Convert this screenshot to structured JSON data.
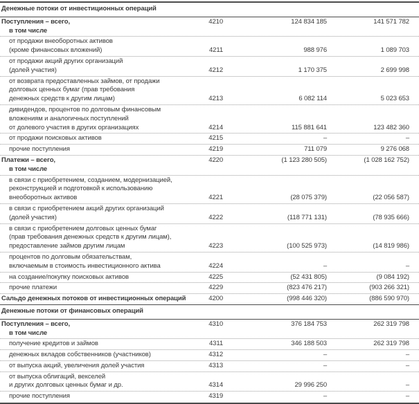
{
  "table": {
    "dash": "–",
    "rows": [
      {
        "type": "section",
        "label": "Денежные потоки от инвестиционных операций"
      },
      {
        "type": "total",
        "code": "4210",
        "lines": [
          "Поступления – всего,"
        ],
        "sub": "в том числе",
        "v1": "124 834 185",
        "v2": "141 571 782"
      },
      {
        "type": "item",
        "code": "4211",
        "lines": [
          "от продажи внеоборотных активов",
          "(кроме финансовых вложений)"
        ],
        "v1": "988 976",
        "v2": "1 089 703"
      },
      {
        "type": "item",
        "code": "4212",
        "lines": [
          "от продажи акций других организаций",
          "(долей участия)"
        ],
        "v1": "1 170 375",
        "v2": "2 699 998"
      },
      {
        "type": "item",
        "code": "4213",
        "lines": [
          "от возврата предоставленных займов, от продажи",
          "долговых ценных бумаг (прав требования",
          "денежных средств к другим лицам)"
        ],
        "v1": "6 082 114",
        "v2": "5 023 653"
      },
      {
        "type": "item",
        "code": "4214",
        "lines": [
          "дивидендов, процентов по долговым финансовым",
          "вложениям и аналогичных поступлений",
          "от долевого участия в других организациях"
        ],
        "v1": "115 881 641",
        "v2": "123 482 360"
      },
      {
        "type": "item",
        "code": "4215",
        "lines": [
          "от продажи поисковых активов"
        ],
        "v1": "–",
        "v2": "–"
      },
      {
        "type": "item",
        "code": "4219",
        "lines": [
          "прочие поступления"
        ],
        "v1": "711 079",
        "v2": "9 276 068"
      },
      {
        "type": "total",
        "code": "4220",
        "lines": [
          "Платежи – всего,"
        ],
        "sub": "в том числе",
        "v1": "(1 123 280 505)",
        "v2": "(1 028 162 752)"
      },
      {
        "type": "item",
        "code": "4221",
        "lines": [
          "в связи с приобретением, созданием, модернизацией,",
          "реконструкцией и подготовкой к использованию",
          "внеоборотных активов"
        ],
        "v1": "(28 075 379)",
        "v2": "(22 056 587)"
      },
      {
        "type": "item",
        "code": "4222",
        "lines": [
          "в связи с приобретением акций других организаций",
          "(долей участия)"
        ],
        "v1": "(118 771 131)",
        "v2": "(78 935 666)"
      },
      {
        "type": "item",
        "code": "4223",
        "lines": [
          "в связи с приобретением долговых ценных бумаг",
          "(прав требования денежных средств к другим лицам),",
          "предоставление займов другим лицам"
        ],
        "v1": "(100 525 973)",
        "v2": "(14 819 986)"
      },
      {
        "type": "item",
        "code": "4224",
        "lines": [
          "процентов по долговым обязательствам,",
          "включаемым в стоимость инвестиционного актива"
        ],
        "v1": "–",
        "v2": "–"
      },
      {
        "type": "item",
        "code": "4225",
        "lines": [
          "на создание/покупку поисковых активов"
        ],
        "v1": "(52 431 805)",
        "v2": "(9 084 192)"
      },
      {
        "type": "item",
        "code": "4229",
        "lines": [
          "прочие платежи"
        ],
        "v1": "(823 476 217)",
        "v2": "(903 266 321)"
      },
      {
        "type": "saldo",
        "code": "4200",
        "lines": [
          "Сальдо денежных потоков от инвестиционных операций"
        ],
        "v1": "(998 446 320)",
        "v2": "(886 590 970)"
      },
      {
        "type": "section",
        "label": "Денежные потоки от финансовых операций"
      },
      {
        "type": "total",
        "code": "4310",
        "lines": [
          "Поступления – всего,"
        ],
        "sub": "в том числе",
        "v1": "376 184 753",
        "v2": "262 319 798"
      },
      {
        "type": "item",
        "code": "4311",
        "lines": [
          "получение кредитов и займов"
        ],
        "v1": "346 188 503",
        "v2": "262 319 798"
      },
      {
        "type": "item",
        "code": "4312",
        "lines": [
          "денежных вкладов собственников (участников)"
        ],
        "v1": "–",
        "v2": "–"
      },
      {
        "type": "item",
        "code": "4313",
        "lines": [
          "от выпуска акций, увеличения долей участия"
        ],
        "v1": "–",
        "v2": "–"
      },
      {
        "type": "item",
        "code": "4314",
        "lines": [
          "от выпуска облигаций, векселей",
          "и других долговых ценных бумаг и др."
        ],
        "v1": "29 996 250",
        "v2": "–"
      },
      {
        "type": "item",
        "code": "4319",
        "lines": [
          "прочие поступления"
        ],
        "v1": "–",
        "v2": "–"
      }
    ]
  }
}
